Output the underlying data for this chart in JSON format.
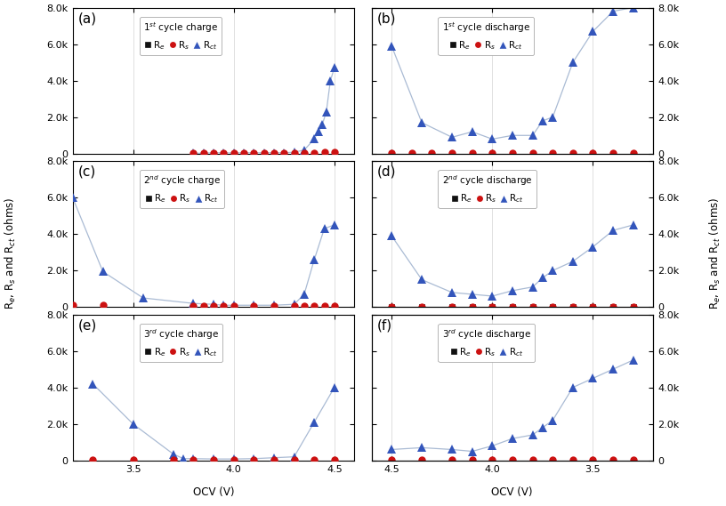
{
  "panels": [
    {
      "label": "a",
      "title": "1$^{st}$ cycle charge",
      "xlim_lo": 3.2,
      "xlim_hi": 4.6,
      "xticks": [
        3.5,
        4.0,
        4.5
      ],
      "Re_x": [
        3.8,
        3.85,
        3.9,
        3.95,
        4.0,
        4.05,
        4.1,
        4.15,
        4.2,
        4.25,
        4.3,
        4.35,
        4.4,
        4.45,
        4.5
      ],
      "Re_y": [
        0,
        0,
        0,
        0,
        0,
        0,
        0,
        0,
        0,
        0,
        0,
        0,
        10,
        15,
        20
      ],
      "Rs_x": [
        3.8,
        3.85,
        3.9,
        3.95,
        4.0,
        4.05,
        4.1,
        4.15,
        4.2,
        4.25,
        4.3,
        4.35,
        4.4,
        4.45,
        4.5
      ],
      "Rs_y": [
        30,
        30,
        30,
        30,
        30,
        30,
        30,
        30,
        30,
        30,
        30,
        30,
        50,
        80,
        100
      ],
      "Rct_x": [
        3.8,
        3.85,
        3.9,
        3.95,
        4.0,
        4.05,
        4.1,
        4.15,
        4.2,
        4.25,
        4.3,
        4.35,
        4.4,
        4.42,
        4.44,
        4.46,
        4.48,
        4.5
      ],
      "Rct_y": [
        20,
        30,
        50,
        50,
        40,
        50,
        50,
        50,
        50,
        50,
        80,
        200,
        800,
        1200,
        1600,
        2300,
        4000,
        4700
      ]
    },
    {
      "label": "b",
      "title": "1$^{st}$ cycle discharge",
      "xlim_lo": 4.6,
      "xlim_hi": 3.2,
      "xticks": [
        4.5,
        4.0,
        3.5
      ],
      "Re_x": [
        4.5,
        4.4,
        4.3,
        4.2,
        4.1,
        4.0,
        3.9,
        3.8,
        3.7,
        3.6,
        3.5,
        3.4,
        3.3
      ],
      "Re_y": [
        0,
        0,
        0,
        0,
        0,
        0,
        0,
        0,
        0,
        0,
        0,
        0,
        0
      ],
      "Rs_x": [
        4.5,
        4.4,
        4.3,
        4.2,
        4.1,
        4.0,
        3.9,
        3.8,
        3.7,
        3.6,
        3.5,
        3.4,
        3.3
      ],
      "Rs_y": [
        30,
        30,
        30,
        30,
        30,
        30,
        30,
        30,
        30,
        30,
        30,
        30,
        30
      ],
      "Rct_x": [
        4.5,
        4.35,
        4.2,
        4.1,
        4.0,
        3.9,
        3.8,
        3.75,
        3.7,
        3.6,
        3.5,
        3.4,
        3.3
      ],
      "Rct_y": [
        5900,
        1700,
        900,
        1200,
        800,
        1000,
        1000,
        1800,
        2000,
        5000,
        6700,
        7800,
        8000
      ]
    },
    {
      "label": "c",
      "title": "2$^{nd}$ cycle charge",
      "xlim_lo": 3.2,
      "xlim_hi": 4.6,
      "xticks": [
        3.5,
        4.0,
        4.5
      ],
      "Re_x": [
        3.2,
        3.35,
        3.8,
        3.85,
        3.9,
        3.95,
        4.0,
        4.1,
        4.2,
        4.3,
        4.35,
        4.4,
        4.45,
        4.5
      ],
      "Re_y": [
        0,
        0,
        0,
        0,
        0,
        0,
        0,
        0,
        0,
        0,
        0,
        0,
        0,
        0
      ],
      "Rs_x": [
        3.2,
        3.35,
        3.8,
        3.85,
        3.9,
        3.95,
        4.0,
        4.1,
        4.2,
        4.3,
        4.35,
        4.4,
        4.45,
        4.5
      ],
      "Rs_y": [
        100,
        100,
        80,
        80,
        60,
        60,
        60,
        50,
        50,
        50,
        50,
        50,
        50,
        80
      ],
      "Rct_x": [
        3.2,
        3.35,
        3.55,
        3.8,
        3.9,
        3.95,
        4.0,
        4.1,
        4.2,
        4.3,
        4.35,
        4.4,
        4.45,
        4.5
      ],
      "Rct_y": [
        6000,
        1950,
        500,
        200,
        150,
        100,
        100,
        100,
        100,
        150,
        700,
        2600,
        4300,
        4500
      ]
    },
    {
      "label": "d",
      "title": "2$^{nd}$ cycle discharge",
      "xlim_lo": 4.6,
      "xlim_hi": 3.2,
      "xticks": [
        4.5,
        4.0,
        3.5
      ],
      "Re_x": [
        4.5,
        4.35,
        4.2,
        4.1,
        4.0,
        3.9,
        3.8,
        3.7,
        3.6,
        3.5,
        3.4,
        3.3
      ],
      "Re_y": [
        0,
        0,
        0,
        0,
        0,
        0,
        0,
        0,
        0,
        0,
        0,
        0
      ],
      "Rs_x": [
        4.5,
        4.35,
        4.2,
        4.1,
        4.0,
        3.9,
        3.8,
        3.7,
        3.6,
        3.5,
        3.4,
        3.3
      ],
      "Rs_y": [
        30,
        30,
        30,
        30,
        30,
        30,
        30,
        30,
        30,
        30,
        30,
        30
      ],
      "Rct_x": [
        4.5,
        4.35,
        4.2,
        4.1,
        4.0,
        3.9,
        3.8,
        3.75,
        3.7,
        3.6,
        3.5,
        3.4,
        3.3
      ],
      "Rct_y": [
        3900,
        1500,
        800,
        700,
        600,
        900,
        1100,
        1600,
        2000,
        2500,
        3300,
        4200,
        4500
      ]
    },
    {
      "label": "e",
      "title": "3$^{rd}$ cycle charge",
      "xlim_lo": 3.2,
      "xlim_hi": 4.6,
      "xticks": [
        3.5,
        4.0,
        4.5
      ],
      "Re_x": [
        3.3,
        3.5,
        3.7,
        3.8,
        3.9,
        4.0,
        4.1,
        4.2,
        4.3,
        4.4,
        4.5
      ],
      "Re_y": [
        0,
        0,
        0,
        0,
        0,
        0,
        0,
        0,
        0,
        0,
        0
      ],
      "Rs_x": [
        3.3,
        3.5,
        3.7,
        3.8,
        3.9,
        4.0,
        4.1,
        4.2,
        4.3,
        4.4,
        4.5
      ],
      "Rs_y": [
        50,
        50,
        50,
        50,
        50,
        50,
        50,
        50,
        50,
        50,
        50
      ],
      "Rct_x": [
        3.3,
        3.5,
        3.7,
        3.75,
        3.8,
        3.9,
        4.0,
        4.1,
        4.2,
        4.3,
        4.4,
        4.5
      ],
      "Rct_y": [
        4200,
        2000,
        350,
        100,
        100,
        80,
        80,
        100,
        150,
        200,
        2100,
        4000
      ]
    },
    {
      "label": "f",
      "title": "3$^{rd}$ cycle discharge",
      "xlim_lo": 4.6,
      "xlim_hi": 3.2,
      "xticks": [
        4.5,
        4.0,
        3.5
      ],
      "Re_x": [
        4.5,
        4.35,
        4.2,
        4.1,
        4.0,
        3.9,
        3.8,
        3.7,
        3.6,
        3.5,
        3.4,
        3.3
      ],
      "Re_y": [
        0,
        0,
        0,
        0,
        0,
        0,
        0,
        0,
        0,
        0,
        0,
        0
      ],
      "Rs_x": [
        4.5,
        4.35,
        4.2,
        4.1,
        4.0,
        3.9,
        3.8,
        3.7,
        3.6,
        3.5,
        3.4,
        3.3
      ],
      "Rs_y": [
        30,
        30,
        30,
        30,
        30,
        30,
        30,
        30,
        30,
        30,
        30,
        30
      ],
      "Rct_x": [
        4.5,
        4.35,
        4.2,
        4.1,
        4.0,
        3.9,
        3.8,
        3.75,
        3.7,
        3.6,
        3.5,
        3.4,
        3.3
      ],
      "Rct_y": [
        600,
        700,
        600,
        500,
        800,
        1200,
        1400,
        1800,
        2200,
        4000,
        4500,
        5000,
        5500
      ]
    }
  ],
  "ylim": [
    0,
    8000
  ],
  "yticks": [
    0,
    2000,
    4000,
    6000,
    8000
  ],
  "color_Re": "#111111",
  "color_Rs": "#CC1111",
  "color_Rct": "#3355BB",
  "line_color": "#AABBD4",
  "marker_Re": "s",
  "marker_Rs": "o",
  "marker_Rct": "^",
  "markersize_Re": 4,
  "markersize_Rs": 6,
  "markersize_Rct": 7,
  "fontsize_label": 8.5,
  "fontsize_tick": 8,
  "fontsize_legend": 7.5,
  "fontsize_panel_label": 11,
  "ylabel_left": "R$_e$, R$_s$ and R$_{ct}$ (ohms)",
  "ylabel_right": "R$_e$, R$_s$ and R$_{ct}$ (ohms)",
  "xlabel": "OCV (V)"
}
